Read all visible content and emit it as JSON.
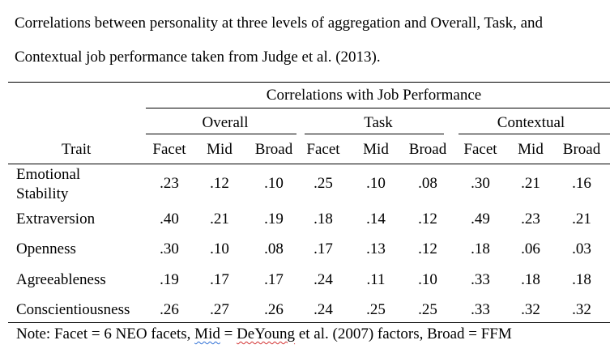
{
  "caption": "Correlations between personality at three levels of aggregation and Overall, Task, and Contextual job performance taken from Judge et al. (2013).",
  "table": {
    "super_header": "Correlations with Job Performance",
    "groups": [
      "Overall",
      "Task",
      "Contextual"
    ],
    "trait_header": "Trait",
    "subheaders": [
      "Facet",
      "Mid",
      "Broad",
      "Facet",
      "Mid",
      "Broad",
      "Facet",
      "Mid",
      "Broad"
    ],
    "rows": [
      {
        "trait_line1": "Emotional",
        "trait_line2": "Stability",
        "values": [
          ".23",
          ".12",
          ".10",
          ".25",
          ".10",
          ".08",
          ".30",
          ".21",
          ".16"
        ]
      },
      {
        "trait_line1": "Extraversion",
        "trait_line2": "",
        "values": [
          ".40",
          ".21",
          ".19",
          ".18",
          ".14",
          ".12",
          ".49",
          ".23",
          ".21"
        ]
      },
      {
        "trait_line1": "Openness",
        "trait_line2": "",
        "values": [
          ".30",
          ".10",
          ".08",
          ".17",
          ".13",
          ".12",
          ".18",
          ".06",
          ".03"
        ]
      },
      {
        "trait_line1": "Agreeableness",
        "trait_line2": "",
        "values": [
          ".19",
          ".17",
          ".17",
          ".24",
          ".11",
          ".10",
          ".33",
          ".18",
          ".18"
        ]
      },
      {
        "trait_line1": "Conscientiousness",
        "trait_line2": "",
        "values": [
          ".26",
          ".27",
          ".26",
          ".24",
          ".25",
          ".25",
          ".33",
          ".32",
          ".32"
        ]
      }
    ]
  },
  "note": {
    "prefix": "Note: Facet = 6 NEO facets, ",
    "mid_word": "Mid",
    "middle": " = ",
    "deyoung_word": "DeYoung",
    "suffix": " et al. (2007) factors, Broad = FFM"
  }
}
